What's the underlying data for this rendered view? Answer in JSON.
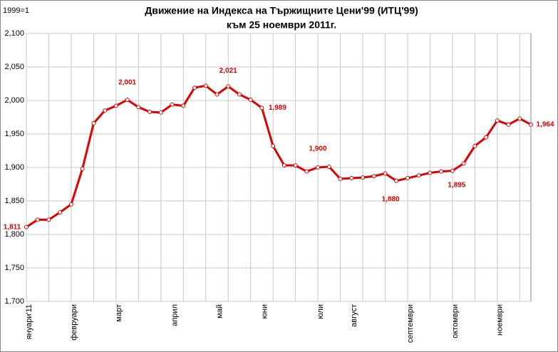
{
  "chart_data": {
    "type": "line",
    "title": "Движение на Индекса на Тържищните Цени'99 (ИТЦ'99)",
    "subtitle": "към 25 ноември 2011г.",
    "y_label": "1999=1",
    "categories": [
      "януари'11",
      null,
      null,
      null,
      "февруари",
      null,
      null,
      null,
      "март",
      null,
      null,
      null,
      null,
      "април",
      null,
      null,
      null,
      "май",
      null,
      null,
      null,
      "юни",
      null,
      null,
      null,
      null,
      "юли",
      null,
      null,
      "август",
      null,
      null,
      null,
      null,
      "септември",
      null,
      null,
      null,
      "октомври",
      null,
      null,
      null,
      "ноември",
      null,
      null,
      null
    ],
    "series": [
      {
        "name": "ИТЦ'99",
        "color": "#e00000",
        "values": [
          1.811,
          1.822,
          1.822,
          1.833,
          1.845,
          1.898,
          1.966,
          1.985,
          1.992,
          2.001,
          1.99,
          1.983,
          1.982,
          1.994,
          1.992,
          2.019,
          2.022,
          2.009,
          2.021,
          2.009,
          2.001,
          1.989,
          1.932,
          1.903,
          1.903,
          1.894,
          1.9,
          1.901,
          1.883,
          1.884,
          1.885,
          1.887,
          1.891,
          1.88,
          1.884,
          1.888,
          1.892,
          1.894,
          1.895,
          1.906,
          1.932,
          1.945,
          1.97,
          1.964,
          1.973,
          1.964
        ],
        "value_labels": [
          "1,811",
          null,
          null,
          null,
          null,
          null,
          null,
          null,
          null,
          "2,001",
          null,
          null,
          null,
          null,
          null,
          null,
          null,
          null,
          "2,021",
          null,
          null,
          "1,989",
          null,
          null,
          null,
          null,
          "1,900",
          null,
          null,
          null,
          null,
          null,
          null,
          "1,880",
          null,
          null,
          null,
          null,
          "1,895",
          null,
          null,
          null,
          null,
          null,
          null,
          "1,964"
        ]
      }
    ],
    "ylim": [
      1.7,
      2.1
    ],
    "yticks": [
      {
        "value": 1.7,
        "label": "1,700"
      },
      {
        "value": 1.75,
        "label": "1,750"
      },
      {
        "value": 1.8,
        "label": "1,800"
      },
      {
        "value": 1.85,
        "label": "1,850"
      },
      {
        "value": 1.9,
        "label": "1,900"
      },
      {
        "value": 1.95,
        "label": "1,950"
      },
      {
        "value": 2.0,
        "label": "2,000"
      },
      {
        "value": 2.05,
        "label": "2,050"
      },
      {
        "value": 2.1,
        "label": "2,100"
      }
    ],
    "grid": true
  }
}
